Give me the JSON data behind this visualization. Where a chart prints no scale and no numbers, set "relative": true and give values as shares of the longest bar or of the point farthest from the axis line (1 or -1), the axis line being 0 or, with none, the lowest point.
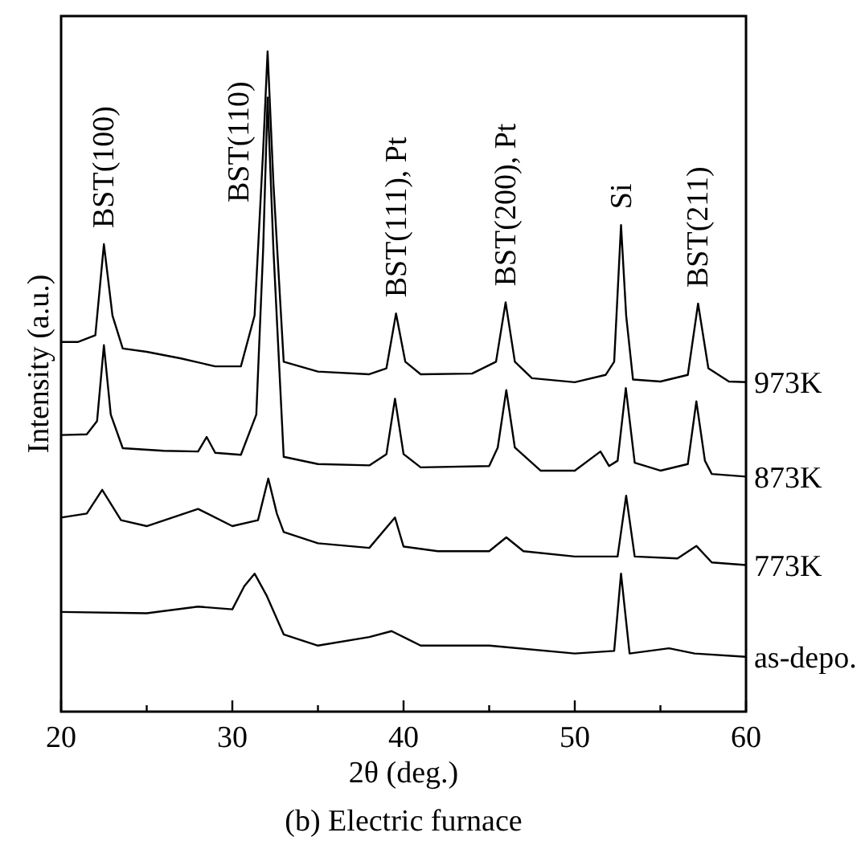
{
  "chart_data": {
    "type": "line",
    "relative": true,
    "title": "(b) Electric furnace",
    "xlabel": "2θ (deg.)",
    "ylabel": "Intensity (a.u.)",
    "xlim": [
      20,
      60
    ],
    "xticks": [
      20,
      {
        "value": 25,
        "label": null
      },
      30,
      {
        "value": 35,
        "label": null
      },
      40,
      {
        "value": 45,
        "label": null
      },
      50,
      {
        "value": 55,
        "label": null
      },
      60
    ],
    "grid": false,
    "legend": false,
    "marker": "none",
    "line_style": "solid",
    "series": [
      {
        "name": "973K",
        "color": "#000000",
        "x": [
          20,
          21,
          22,
          22.5,
          23,
          23.6,
          25,
          27,
          29,
          30.5,
          31.3,
          31.8,
          32.06,
          32.4,
          33,
          35,
          38,
          39,
          39.56,
          40.1,
          41,
          44,
          45.4,
          45.96,
          46.5,
          47.5,
          50,
          51.8,
          52.3,
          52.7,
          53.0,
          53.4,
          55,
          56.6,
          57.2,
          57.8,
          59,
          60
        ],
        "values": [
          0.56,
          0.56,
          0.57,
          0.708,
          0.6,
          0.55,
          0.545,
          0.535,
          0.523,
          0.523,
          0.6,
          0.85,
          1.0,
          0.8,
          0.53,
          0.515,
          0.511,
          0.52,
          0.603,
          0.53,
          0.511,
          0.512,
          0.53,
          0.62,
          0.53,
          0.505,
          0.499,
          0.51,
          0.53,
          0.737,
          0.6,
          0.503,
          0.5,
          0.51,
          0.618,
          0.52,
          0.5,
          0.499
        ]
      },
      {
        "name": "873K",
        "color": "#000000",
        "x": [
          20,
          21.5,
          22.1,
          22.5,
          22.9,
          23.6,
          26,
          28,
          28.5,
          29,
          30.5,
          31.4,
          31.8,
          32.06,
          32.4,
          33,
          35,
          38,
          39,
          39.5,
          40,
          41,
          45,
          45.5,
          46,
          46.5,
          48,
          50,
          51.5,
          52,
          52.5,
          52.98,
          53.5,
          55,
          56.6,
          57.1,
          57.6,
          58,
          60
        ],
        "values": [
          0.419,
          0.42,
          0.44,
          0.555,
          0.45,
          0.399,
          0.395,
          0.394,
          0.416,
          0.392,
          0.389,
          0.45,
          0.7,
          0.93,
          0.7,
          0.386,
          0.375,
          0.373,
          0.39,
          0.474,
          0.39,
          0.37,
          0.372,
          0.4,
          0.487,
          0.4,
          0.365,
          0.365,
          0.394,
          0.372,
          0.38,
          0.49,
          0.377,
          0.365,
          0.375,
          0.47,
          0.38,
          0.36,
          0.356
        ]
      },
      {
        "name": "773K",
        "color": "#000000",
        "x": [
          20,
          21.5,
          22.4,
          23.5,
          25,
          28,
          30,
          31.5,
          32.1,
          32.6,
          33,
          35,
          38,
          39.5,
          40,
          42,
          45,
          46,
          47,
          50,
          52.5,
          53.0,
          53.5,
          56,
          57.1,
          58,
          60
        ],
        "values": [
          0.294,
          0.3,
          0.336,
          0.29,
          0.281,
          0.307,
          0.281,
          0.29,
          0.353,
          0.3,
          0.272,
          0.255,
          0.248,
          0.294,
          0.25,
          0.243,
          0.243,
          0.264,
          0.243,
          0.235,
          0.235,
          0.327,
          0.235,
          0.232,
          0.251,
          0.226,
          0.222
        ]
      },
      {
        "name": "as-depo.",
        "color": "#000000",
        "x": [
          20,
          25,
          28,
          30,
          30.7,
          31.3,
          32,
          33,
          35,
          38,
          39.3,
          41,
          45,
          50,
          52.3,
          52.7,
          53.2,
          55.5,
          57,
          60
        ],
        "values": [
          0.151,
          0.149,
          0.159,
          0.155,
          0.19,
          0.209,
          0.176,
          0.117,
          0.1,
          0.113,
          0.122,
          0.1,
          0.1,
          0.088,
          0.092,
          0.209,
          0.088,
          0.096,
          0.088,
          0.083
        ]
      }
    ],
    "annotations": [
      {
        "text": "BST(100)",
        "x": 22.5,
        "y": 0.708
      },
      {
        "text": "BST(110)",
        "x": 32.06,
        "y": 1.0
      },
      {
        "text": "BST(111), Pt",
        "x": 39.56,
        "y": 0.603
      },
      {
        "text": "BST(200), Pt",
        "x": 45.96,
        "y": 0.62
      },
      {
        "text": "Si",
        "x": 52.7,
        "y": 0.737
      },
      {
        "text": "BST(211)",
        "x": 57.2,
        "y": 0.618
      }
    ]
  }
}
